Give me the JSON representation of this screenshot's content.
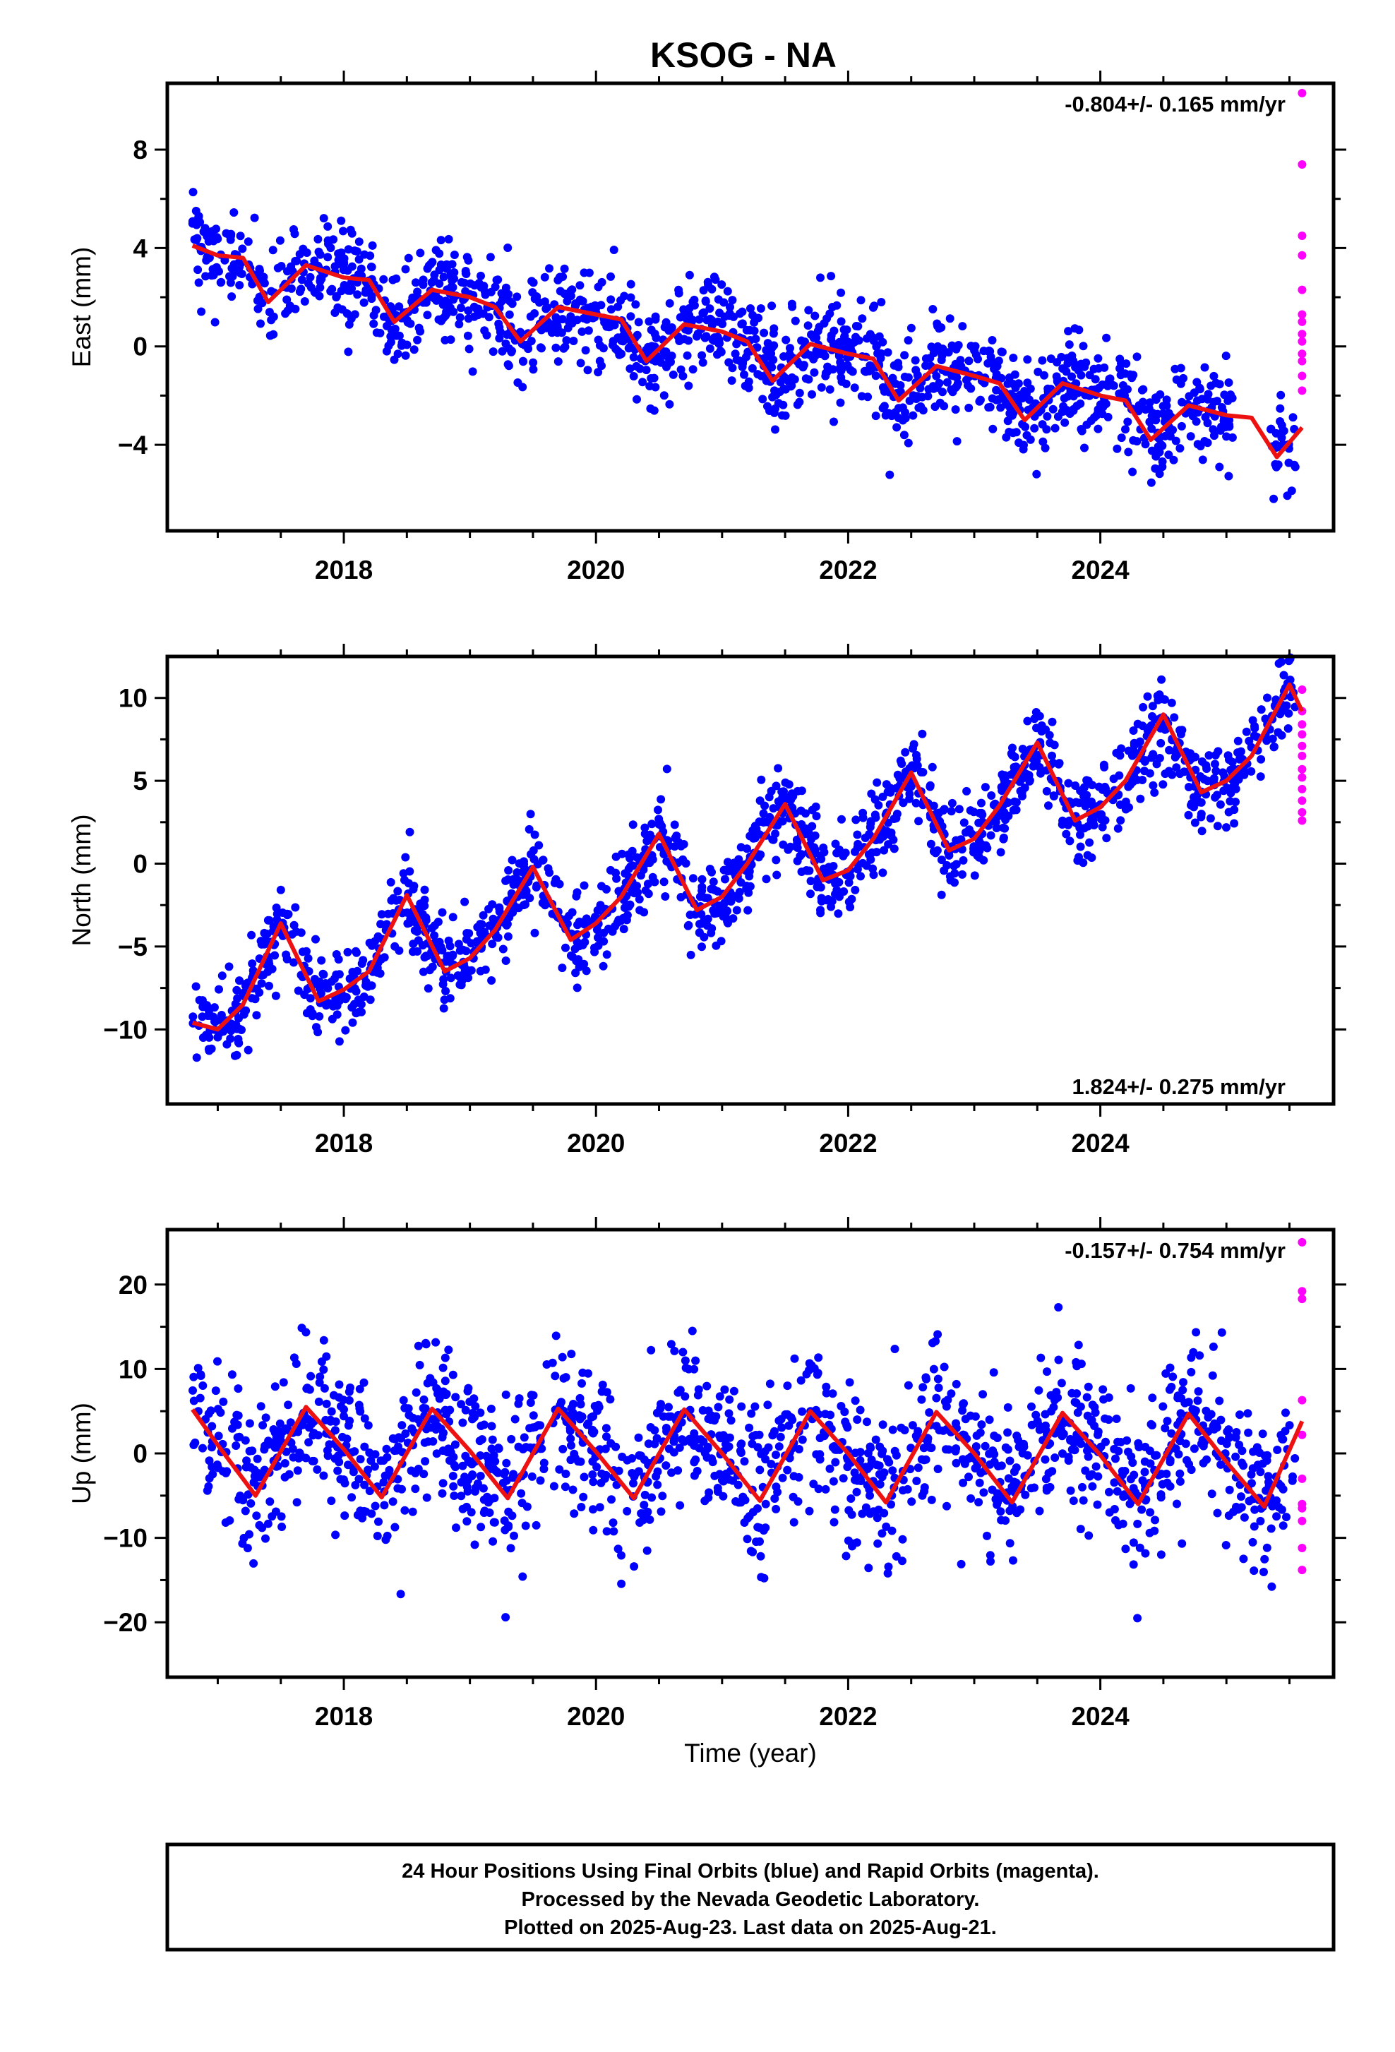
{
  "title": "KSOG - NA",
  "xlabel": "Time (year)",
  "colors": {
    "final": "#0000ff",
    "rapid": "#ff00ff",
    "model": "#ee1111",
    "frame": "#000000"
  },
  "footer": {
    "line1": "24 Hour Positions Using Final Orbits (blue) and Rapid Orbits (magenta).",
    "line2": "Processed by the Nevada Geodetic Laboratory.",
    "line3": "Plotted on 2025-Aug-23. Last data on 2025-Aug-21."
  },
  "chart_data": [
    {
      "type": "scatter",
      "ylabel": "East (mm)",
      "rate_label": "-0.804+/- 0.165 mm/yr",
      "rate_position": "top-right",
      "xlim": [
        2016.6,
        2025.85
      ],
      "ylim": [
        -7.5,
        10.7
      ],
      "x_ticks": [
        2018,
        2020,
        2022,
        2024
      ],
      "y_ticks": [
        -4,
        0,
        4,
        8
      ],
      "y_tick_labels": [
        "−4",
        "0",
        "4",
        "8"
      ],
      "series": [
        {
          "kind": "final-orbit-points",
          "x_range": [
            2016.8,
            2025.55
          ],
          "trend_mm_per_yr": -0.804,
          "level_at_start": 5.0,
          "seasonal_amplitude": 0.8,
          "scatter_sigma": 1.0
        },
        {
          "kind": "rapid-orbit-points",
          "x": [
            2025.6,
            2025.6,
            2025.6,
            2025.6,
            2025.6,
            2025.6,
            2025.6,
            2025.6,
            2025.6,
            2025.6,
            2025.6,
            2025.6,
            2025.6
          ],
          "y": [
            10.3,
            7.4,
            4.5,
            3.7,
            2.3,
            1.3,
            0.5,
            0.2,
            -0.3,
            -0.6,
            -1.2,
            -1.8,
            1.0
          ]
        },
        {
          "kind": "model-fit",
          "x": [
            2016.8,
            2017.0,
            2017.2,
            2017.4,
            2017.7,
            2018.0,
            2018.2,
            2018.4,
            2018.7,
            2019.0,
            2019.2,
            2019.4,
            2019.7,
            2020.0,
            2020.2,
            2020.4,
            2020.7,
            2021.0,
            2021.2,
            2021.4,
            2021.7,
            2022.0,
            2022.2,
            2022.4,
            2022.7,
            2023.0,
            2023.2,
            2023.4,
            2023.7,
            2024.0,
            2024.2,
            2024.4,
            2024.7,
            2025.0,
            2025.2,
            2025.4,
            2025.6
          ],
          "y": [
            4.1,
            3.7,
            3.6,
            1.8,
            3.3,
            2.8,
            2.7,
            1.0,
            2.3,
            2.0,
            1.6,
            0.2,
            1.6,
            1.3,
            1.1,
            -0.6,
            0.9,
            0.6,
            0.2,
            -1.4,
            0.1,
            -0.3,
            -0.5,
            -2.2,
            -0.8,
            -1.2,
            -1.5,
            -3.0,
            -1.5,
            -2.0,
            -2.2,
            -3.8,
            -2.4,
            -2.8,
            -2.9,
            -4.5,
            -3.3
          ]
        }
      ]
    },
    {
      "type": "scatter",
      "ylabel": "North (mm)",
      "rate_label": "1.824+/- 0.275 mm/yr",
      "rate_position": "bottom-right",
      "xlim": [
        2016.6,
        2025.85
      ],
      "ylim": [
        -14.5,
        12.5
      ],
      "x_ticks": [
        2018,
        2020,
        2022,
        2024
      ],
      "y_ticks": [
        -10,
        -5,
        0,
        5,
        10
      ],
      "y_tick_labels": [
        "−10",
        "−5",
        "0",
        "5",
        "10"
      ],
      "series": [
        {
          "kind": "final-orbit-points",
          "x_range": [
            2016.8,
            2025.55
          ],
          "trend_mm_per_yr": 1.824,
          "level_at_start": -9.5,
          "seasonal_amplitude": 2.8,
          "scatter_sigma": 1.3
        },
        {
          "kind": "rapid-orbit-points",
          "x": [
            2025.6,
            2025.6,
            2025.6,
            2025.6,
            2025.6,
            2025.6,
            2025.6,
            2025.6,
            2025.6,
            2025.6,
            2025.6,
            2025.6
          ],
          "y": [
            10.5,
            9.2,
            8.4,
            7.8,
            7.1,
            6.5,
            5.7,
            5.2,
            4.5,
            3.8,
            3.1,
            2.6
          ]
        },
        {
          "kind": "model-fit",
          "x": [
            2016.8,
            2017.0,
            2017.2,
            2017.5,
            2017.8,
            2018.0,
            2018.2,
            2018.5,
            2018.8,
            2019.0,
            2019.2,
            2019.5,
            2019.8,
            2020.0,
            2020.2,
            2020.5,
            2020.8,
            2021.0,
            2021.2,
            2021.5,
            2021.8,
            2022.0,
            2022.2,
            2022.5,
            2022.8,
            2023.0,
            2023.2,
            2023.5,
            2023.8,
            2024.0,
            2024.2,
            2024.5,
            2024.8,
            2025.0,
            2025.2,
            2025.5,
            2025.6
          ],
          "y": [
            -9.6,
            -10.0,
            -8.5,
            -3.6,
            -8.3,
            -7.6,
            -6.5,
            -1.9,
            -6.5,
            -5.7,
            -4.0,
            -0.2,
            -4.6,
            -3.6,
            -2.0,
            1.8,
            -2.8,
            -2.0,
            0.0,
            3.6,
            -1.0,
            -0.4,
            1.5,
            5.5,
            0.8,
            1.5,
            3.5,
            7.3,
            2.6,
            3.4,
            5.0,
            9.0,
            4.3,
            5.0,
            6.5,
            10.8,
            9.2
          ]
        }
      ]
    },
    {
      "type": "scatter",
      "ylabel": "Up (mm)",
      "rate_label": "-0.157+/- 0.754 mm/yr",
      "rate_position": "top-right",
      "xlim": [
        2016.6,
        2025.85
      ],
      "ylim": [
        -26.5,
        26.5
      ],
      "x_ticks": [
        2018,
        2020,
        2022,
        2024
      ],
      "y_ticks": [
        -20,
        -10,
        0,
        10,
        20
      ],
      "y_tick_labels": [
        "−20",
        "−10",
        "0",
        "10",
        "20"
      ],
      "series": [
        {
          "kind": "final-orbit-points",
          "x_range": [
            2016.8,
            2025.55
          ],
          "trend_mm_per_yr": -0.157,
          "level_at_start": 0.0,
          "seasonal_amplitude": 5.5,
          "scatter_sigma": 4.5
        },
        {
          "kind": "rapid-orbit-points",
          "x": [
            2025.6,
            2025.6,
            2025.6,
            2025.6,
            2025.6,
            2025.6,
            2025.6,
            2025.6,
            2025.6,
            2025.6,
            2025.6
          ],
          "y": [
            25.0,
            19.2,
            18.3,
            6.3,
            2.2,
            -3.0,
            -6.0,
            -6.5,
            -8.0,
            -11.2,
            -13.8
          ]
        },
        {
          "kind": "model-fit",
          "x": [
            2016.8,
            2017.0,
            2017.3,
            2017.7,
            2018.0,
            2018.3,
            2018.7,
            2019.0,
            2019.3,
            2019.7,
            2020.0,
            2020.3,
            2020.7,
            2021.0,
            2021.3,
            2021.7,
            2022.0,
            2022.3,
            2022.7,
            2023.0,
            2023.3,
            2023.7,
            2024.0,
            2024.3,
            2024.7,
            2025.0,
            2025.3,
            2025.6
          ],
          "y": [
            5.2,
            1.0,
            -5.0,
            5.5,
            0.5,
            -5.2,
            5.3,
            0.3,
            -5.3,
            5.3,
            0.2,
            -5.3,
            5.2,
            0.0,
            -5.6,
            5.0,
            0.0,
            -5.8,
            4.9,
            0.0,
            -5.8,
            4.8,
            -0.2,
            -6.0,
            4.7,
            -1.0,
            -6.3,
            3.8
          ]
        }
      ]
    }
  ]
}
